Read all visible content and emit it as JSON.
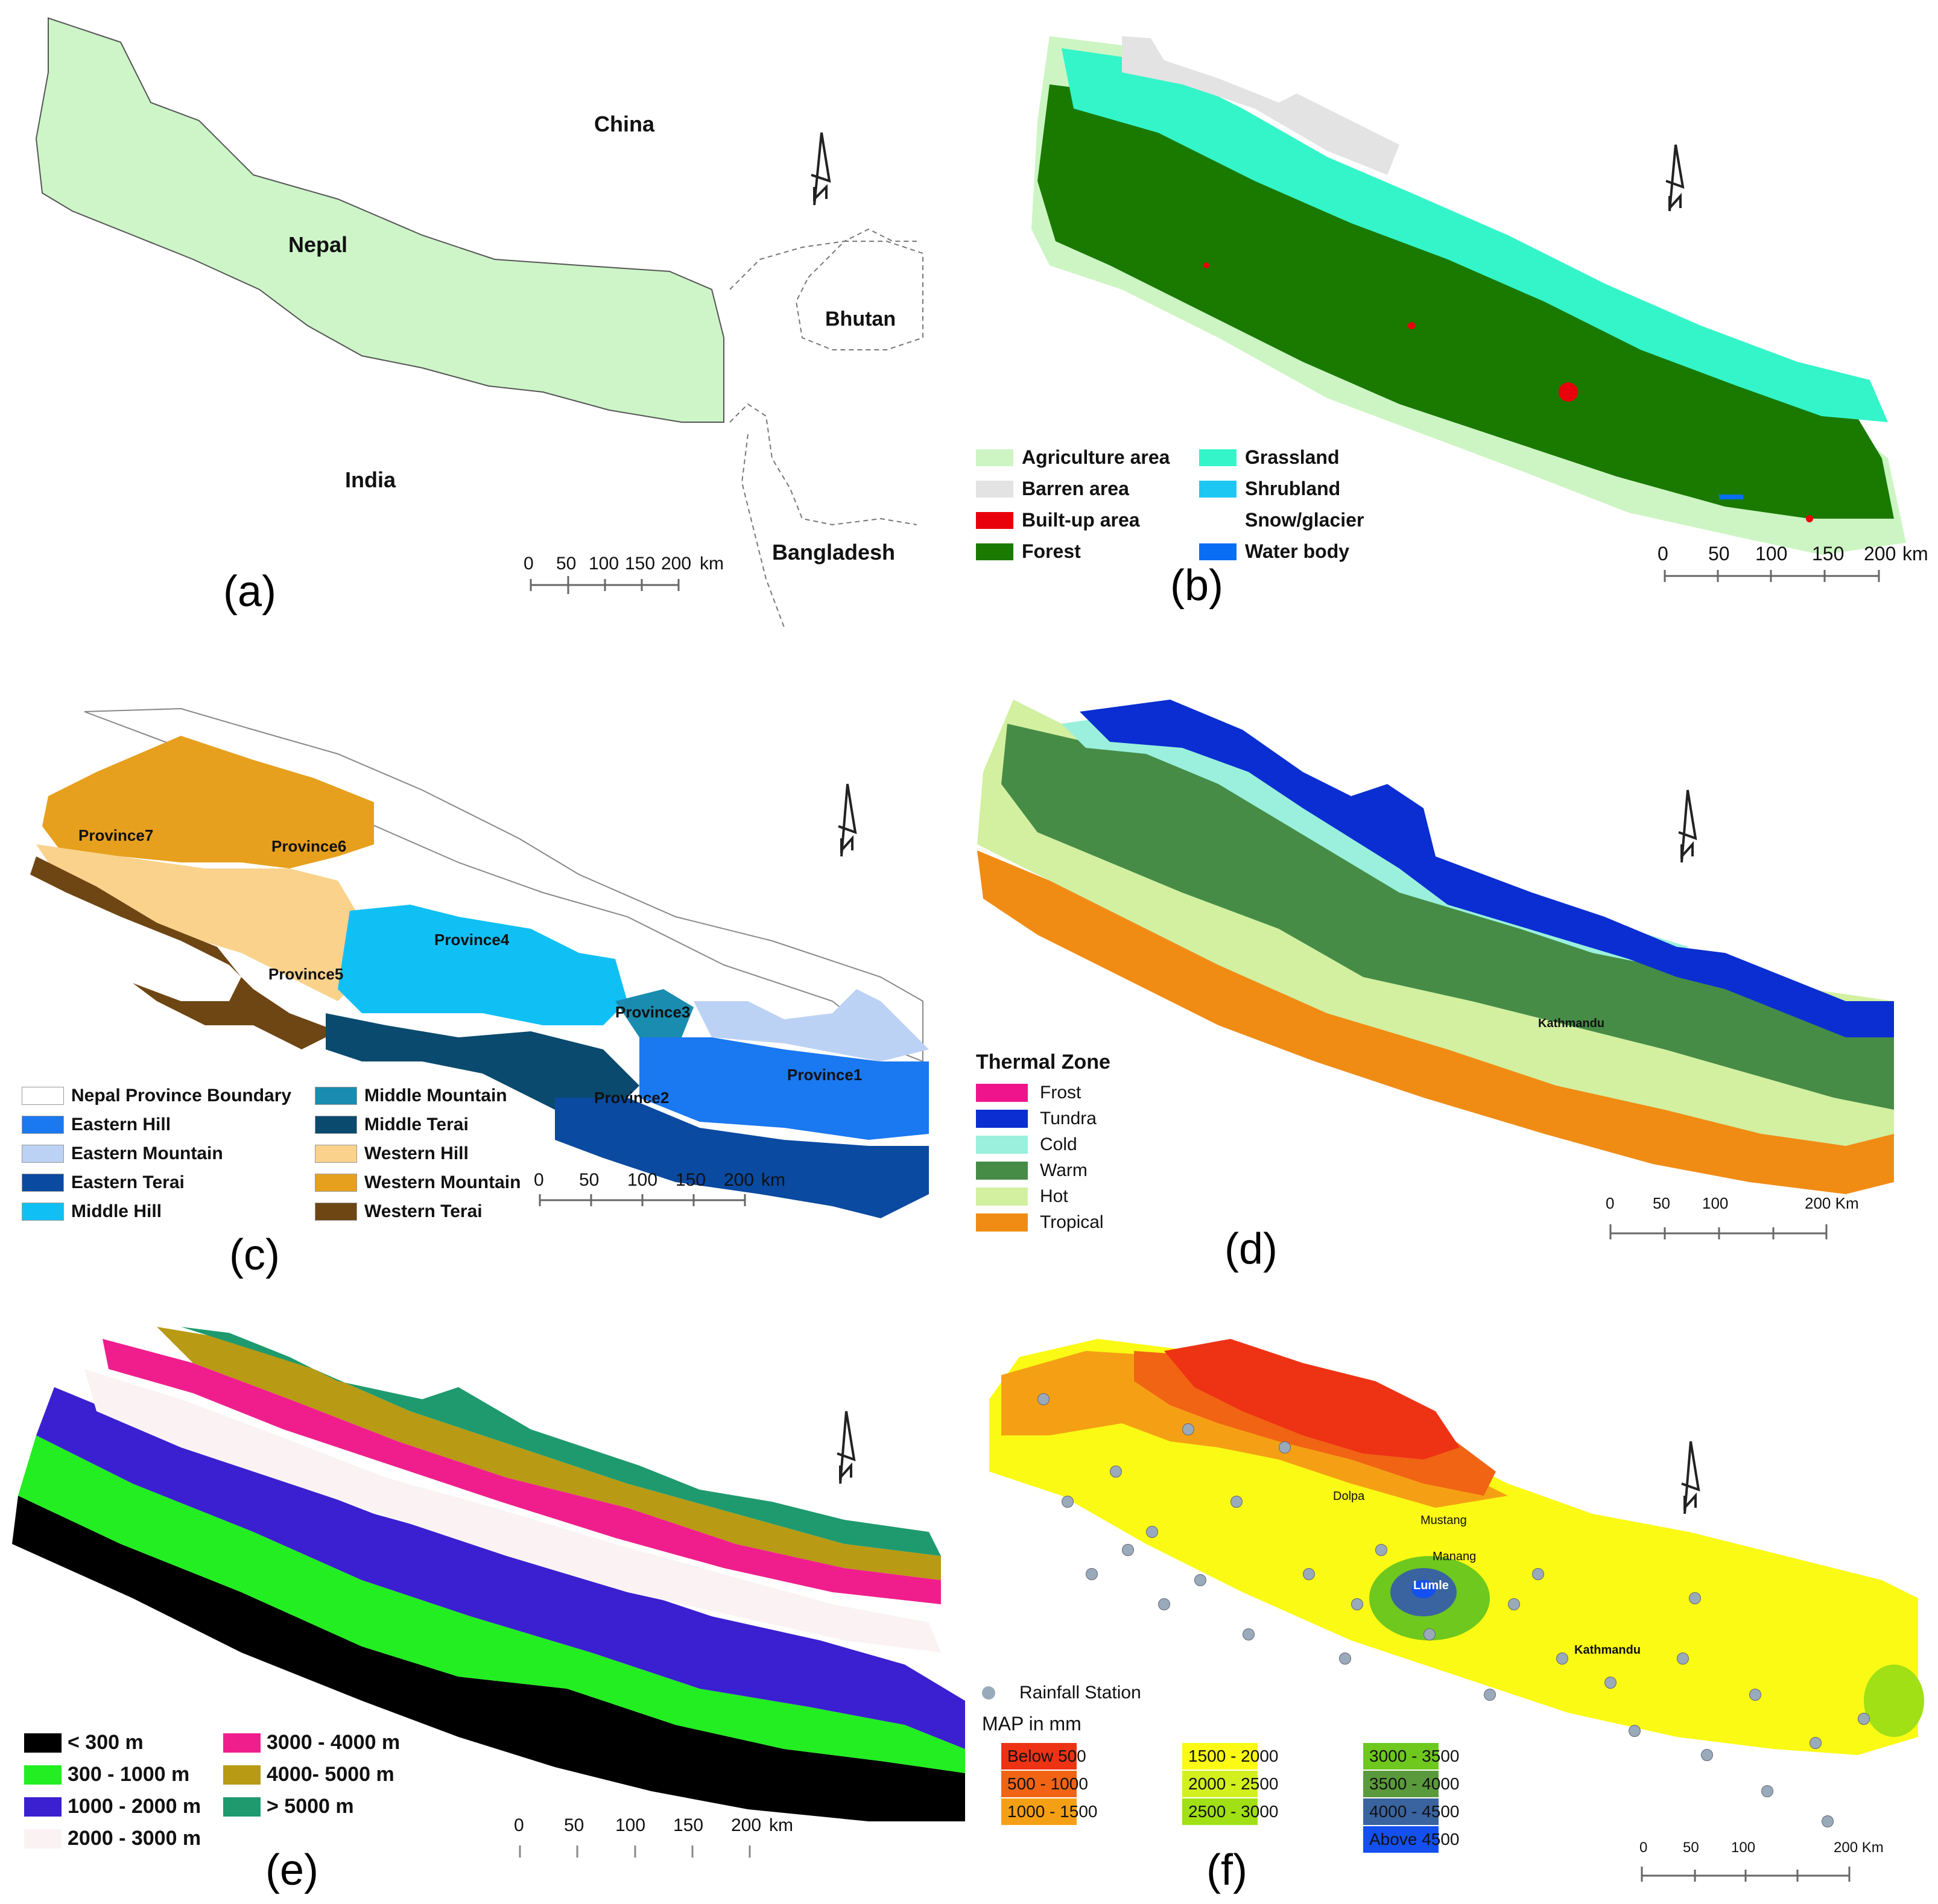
{
  "panels": {
    "a": {
      "letter": "(a)",
      "places": {
        "china": "China",
        "nepal": "Nepal",
        "bhutan": "Bhutan",
        "india": "India",
        "bangladesh": "Bangladesh"
      },
      "scale_ticks": [
        "0",
        "50",
        "100",
        "150",
        "200"
      ],
      "scale_unit": "km",
      "colors": {
        "nepal": "#cdf5c8",
        "border": "#666666"
      }
    },
    "b": {
      "letter": "(b)",
      "legend": [
        {
          "label": "Agriculture area",
          "color": "#ccf5c3"
        },
        {
          "label": "Barren area",
          "color": "#e3e3e3"
        },
        {
          "label": "Built-up area",
          "color": "#e8000b"
        },
        {
          "label": "Forest",
          "color": "#1a7a00"
        },
        {
          "label": "Grassland",
          "color": "#33f5c9"
        },
        {
          "label": "Shrubland",
          "color": "#1cc8f2"
        },
        {
          "label": "Snow/glacier",
          "color": "#ffffff"
        },
        {
          "label": "Water body",
          "color": "#0a6ef5"
        }
      ],
      "scale_ticks": [
        "0",
        "50",
        "100",
        "150",
        "200"
      ],
      "scale_unit": "km"
    },
    "c": {
      "letter": "(c)",
      "provinces": [
        "Province7",
        "Province6",
        "Province5",
        "Province4",
        "Province3",
        "Province2",
        "Province1"
      ],
      "legend": [
        {
          "label": "Nepal Province Boundary",
          "color": "#ffffff"
        },
        {
          "label": "Eastern Hill",
          "color": "#1a78f0"
        },
        {
          "label": "Eastern Mountain",
          "color": "#bcd2f5"
        },
        {
          "label": "Eastern Terai",
          "color": "#0a4aa0"
        },
        {
          "label": "Middle Hill",
          "color": "#10c0f5"
        },
        {
          "label": "Middle Mountain",
          "color": "#1a8cb0"
        },
        {
          "label": "Middle Terai",
          "color": "#0a4a6e"
        },
        {
          "label": "Western Hill",
          "color": "#fad28c"
        },
        {
          "label": "Western Mountain",
          "color": "#e6a01e"
        },
        {
          "label": "Western Terai",
          "color": "#6e4614"
        }
      ],
      "scale_ticks": [
        "0",
        "50",
        "100",
        "150",
        "200"
      ],
      "scale_unit": "km"
    },
    "d": {
      "letter": "(d)",
      "legend_title": "Thermal Zone",
      "legend": [
        {
          "label": "Frost",
          "color": "#f0148c"
        },
        {
          "label": "Tundra",
          "color": "#0a2ed2"
        },
        {
          "label": "Cold",
          "color": "#9af0dc"
        },
        {
          "label": "Warm",
          "color": "#468c46"
        },
        {
          "label": "Hot",
          "color": "#d2f0a0"
        },
        {
          "label": "Tropical",
          "color": "#f08c14"
        }
      ],
      "city": "Kathmandu",
      "scale_ticks": [
        "0",
        "50",
        "100",
        "200 Km"
      ]
    },
    "e": {
      "letter": "(e)",
      "legend": [
        {
          "label": "< 300 m",
          "color": "#000000"
        },
        {
          "label": "300 - 1000 m",
          "color": "#22ee22"
        },
        {
          "label": "1000 - 2000 m",
          "color": "#3a20d0"
        },
        {
          "label": "2000 - 3000 m",
          "color": "#fbf3f3"
        },
        {
          "label": "3000 - 4000 m",
          "color": "#f01e8c"
        },
        {
          "label": "4000- 5000 m",
          "color": "#b89a14"
        },
        {
          "label": "> 5000 m",
          "color": "#1e9a6e"
        }
      ],
      "scale_ticks": [
        "0",
        "50",
        "100",
        "150",
        "200"
      ],
      "scale_unit": "km"
    },
    "f": {
      "letter": "(f)",
      "station_label": "Rainfall Station",
      "legend_title": "MAP in mm",
      "legend": [
        {
          "label": "Below 500",
          "color": "#ee3214"
        },
        {
          "label": "500 - 1000",
          "color": "#f06414"
        },
        {
          "label": "1000 - 1500",
          "color": "#f5a014"
        },
        {
          "label": "1500 - 2000",
          "color": "#fafa14"
        },
        {
          "label": "2000 - 2500",
          "color": "#d2f01e"
        },
        {
          "label": "2500 - 3000",
          "color": "#a0e014"
        },
        {
          "label": "3000 - 3500",
          "color": "#6ec81e"
        },
        {
          "label": "3500 - 4000",
          "color": "#5a9a3c"
        },
        {
          "label": "4000 - 4500",
          "color": "#3a64a0"
        },
        {
          "label": "Above 4500",
          "color": "#1450f0"
        }
      ],
      "places": {
        "dolpa": "Dolpa",
        "mustang": "Mustang",
        "manang": "Manang",
        "lumle": "Lumle",
        "kathmandu": "Kathmandu"
      },
      "scale_ticks": [
        "0",
        "50",
        "100",
        "200 Km"
      ]
    }
  }
}
